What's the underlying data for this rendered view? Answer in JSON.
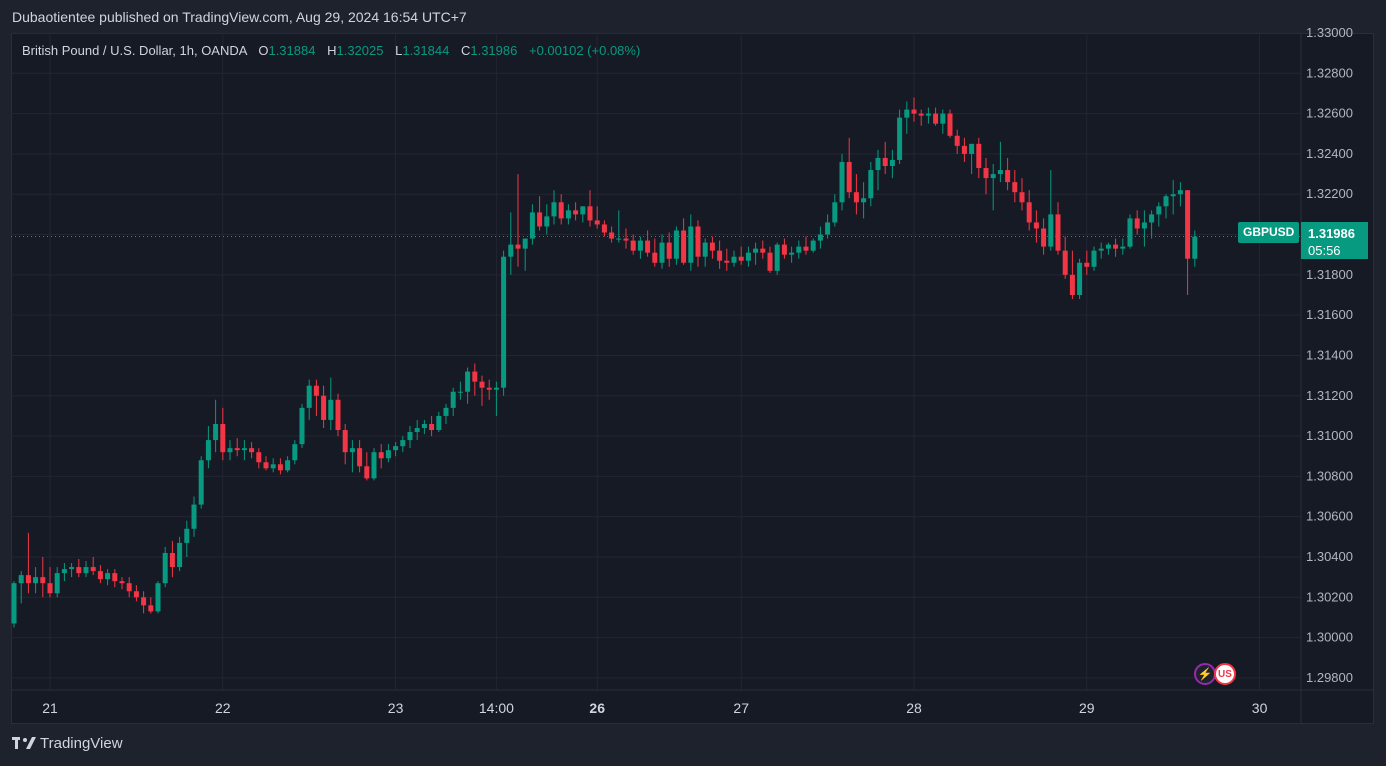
{
  "header": {
    "publish_line": "Dubaotientee published on TradingView.com, Aug 29, 2024 16:54 UTC+7"
  },
  "legend": {
    "instrument": "British Pound / U.S. Dollar, 1h, OANDA",
    "open_label": "O",
    "open_value": "1.31884",
    "high_label": "H",
    "high_value": "1.32025",
    "low_label": "L",
    "low_value": "1.31844",
    "close_label": "C",
    "close_value": "1.31986",
    "change": "+0.00102 (+0.08%)"
  },
  "last_price": {
    "symbol": "GBPUSD",
    "price": "1.31986",
    "countdown": "05:56"
  },
  "branding": {
    "name": "TradingView"
  },
  "icons": {
    "events": [
      "lightning-icon",
      "us-flag-icon"
    ],
    "logo": "tradingview-logo-icon"
  },
  "colors": {
    "up": "#089981",
    "down": "#f23645",
    "background": "#161a25",
    "grid": "#232632"
  },
  "chart_data": {
    "type": "candlestick",
    "symbol": "GBPUSD",
    "timeframe": "1h",
    "y_ticks": [
      "1.33000",
      "1.32800",
      "1.32600",
      "1.32400",
      "1.32200",
      "1.32000",
      "1.31800",
      "1.31600",
      "1.31400",
      "1.31200",
      "1.31000",
      "1.30800",
      "1.30600",
      "1.30400",
      "1.30200",
      "1.30000",
      "1.29800"
    ],
    "y_range": [
      1.2974,
      1.33
    ],
    "x_ticks": [
      {
        "label": "21",
        "i": 5,
        "bold": false
      },
      {
        "label": "22",
        "i": 29,
        "bold": false
      },
      {
        "label": "23",
        "i": 53,
        "bold": false
      },
      {
        "label": "14:00",
        "i": 67,
        "bold": false
      },
      {
        "label": "26",
        "i": 81,
        "bold": true
      },
      {
        "label": "27",
        "i": 101,
        "bold": false
      },
      {
        "label": "28",
        "i": 125,
        "bold": false
      },
      {
        "label": "29",
        "i": 149,
        "bold": false
      },
      {
        "label": "30",
        "i": 173,
        "bold": false
      }
    ],
    "candles": [
      [
        1.3007,
        1.3028,
        1.3005,
        1.3027
      ],
      [
        1.3027,
        1.3033,
        1.3017,
        1.3031
      ],
      [
        1.3031,
        1.3052,
        1.3022,
        1.3027
      ],
      [
        1.3027,
        1.3035,
        1.3022,
        1.303
      ],
      [
        1.303,
        1.304,
        1.302,
        1.3027
      ],
      [
        1.3027,
        1.3035,
        1.302,
        1.3022
      ],
      [
        1.3022,
        1.3035,
        1.302,
        1.3032
      ],
      [
        1.3032,
        1.3037,
        1.3028,
        1.3034
      ],
      [
        1.3034,
        1.3037,
        1.303,
        1.3035
      ],
      [
        1.3035,
        1.3039,
        1.303,
        1.3032
      ],
      [
        1.3032,
        1.3038,
        1.303,
        1.3035
      ],
      [
        1.3035,
        1.304,
        1.3031,
        1.3033
      ],
      [
        1.3033,
        1.3036,
        1.3027,
        1.3029
      ],
      [
        1.3029,
        1.3034,
        1.3026,
        1.3032
      ],
      [
        1.3032,
        1.3034,
        1.3025,
        1.3028
      ],
      [
        1.3028,
        1.303,
        1.3024,
        1.3027
      ],
      [
        1.3027,
        1.303,
        1.302,
        1.3023
      ],
      [
        1.3023,
        1.3026,
        1.3018,
        1.302
      ],
      [
        1.302,
        1.3023,
        1.3012,
        1.3016
      ],
      [
        1.3016,
        1.302,
        1.3012,
        1.3013
      ],
      [
        1.3013,
        1.3028,
        1.3012,
        1.3027
      ],
      [
        1.3027,
        1.3045,
        1.3025,
        1.3042
      ],
      [
        1.3042,
        1.3048,
        1.303,
        1.3035
      ],
      [
        1.3035,
        1.305,
        1.3033,
        1.3047
      ],
      [
        1.3047,
        1.3058,
        1.304,
        1.3054
      ],
      [
        1.3054,
        1.307,
        1.305,
        1.3066
      ],
      [
        1.3066,
        1.309,
        1.3064,
        1.3088
      ],
      [
        1.3088,
        1.3105,
        1.3084,
        1.3098
      ],
      [
        1.3098,
        1.3118,
        1.3092,
        1.3106
      ],
      [
        1.3106,
        1.3114,
        1.3088,
        1.3092
      ],
      [
        1.3092,
        1.3098,
        1.3088,
        1.3094
      ],
      [
        1.3094,
        1.3099,
        1.309,
        1.3093
      ],
      [
        1.3093,
        1.3098,
        1.3088,
        1.3094
      ],
      [
        1.3094,
        1.3097,
        1.3089,
        1.3092
      ],
      [
        1.3092,
        1.3094,
        1.3084,
        1.3087
      ],
      [
        1.3087,
        1.309,
        1.3083,
        1.3084
      ],
      [
        1.3084,
        1.3089,
        1.3082,
        1.3086
      ],
      [
        1.3086,
        1.3089,
        1.3081,
        1.3083
      ],
      [
        1.3083,
        1.309,
        1.3082,
        1.3088
      ],
      [
        1.3088,
        1.3098,
        1.3086,
        1.3096
      ],
      [
        1.3096,
        1.3116,
        1.3094,
        1.3114
      ],
      [
        1.3114,
        1.3128,
        1.3108,
        1.3125
      ],
      [
        1.3125,
        1.3128,
        1.311,
        1.312
      ],
      [
        1.312,
        1.3125,
        1.3104,
        1.3108
      ],
      [
        1.3108,
        1.3129,
        1.3103,
        1.3118
      ],
      [
        1.3118,
        1.3121,
        1.31,
        1.3103
      ],
      [
        1.3103,
        1.3106,
        1.3086,
        1.3092
      ],
      [
        1.3092,
        1.3098,
        1.3082,
        1.3094
      ],
      [
        1.3094,
        1.3098,
        1.3082,
        1.3085
      ],
      [
        1.3085,
        1.3092,
        1.3078,
        1.3079
      ],
      [
        1.3079,
        1.3094,
        1.3078,
        1.3092
      ],
      [
        1.3092,
        1.3096,
        1.3084,
        1.3089
      ],
      [
        1.3089,
        1.3096,
        1.3087,
        1.3093
      ],
      [
        1.3093,
        1.3097,
        1.309,
        1.3095
      ],
      [
        1.3095,
        1.31,
        1.3092,
        1.3098
      ],
      [
        1.3098,
        1.3105,
        1.3094,
        1.3102
      ],
      [
        1.3102,
        1.3108,
        1.3098,
        1.3104
      ],
      [
        1.3104,
        1.3108,
        1.3101,
        1.3106
      ],
      [
        1.3106,
        1.311,
        1.31,
        1.3103
      ],
      [
        1.3103,
        1.3112,
        1.3102,
        1.311
      ],
      [
        1.311,
        1.3116,
        1.3106,
        1.3114
      ],
      [
        1.3114,
        1.3124,
        1.311,
        1.3122
      ],
      [
        1.3122,
        1.3127,
        1.3118,
        1.3122
      ],
      [
        1.3122,
        1.3134,
        1.3116,
        1.3132
      ],
      [
        1.3132,
        1.3136,
        1.312,
        1.3127
      ],
      [
        1.3127,
        1.313,
        1.3115,
        1.3124
      ],
      [
        1.3124,
        1.3128,
        1.3118,
        1.3123
      ],
      [
        1.3123,
        1.3127,
        1.311,
        1.3124
      ],
      [
        1.3124,
        1.3192,
        1.312,
        1.3189
      ],
      [
        1.3189,
        1.3211,
        1.318,
        1.3195
      ],
      [
        1.3195,
        1.323,
        1.3184,
        1.3193
      ],
      [
        1.3193,
        1.3198,
        1.3182,
        1.3198
      ],
      [
        1.3198,
        1.3215,
        1.3195,
        1.3211
      ],
      [
        1.3211,
        1.3219,
        1.3202,
        1.3204
      ],
      [
        1.3204,
        1.3215,
        1.32,
        1.3209
      ],
      [
        1.3209,
        1.3222,
        1.3205,
        1.3216
      ],
      [
        1.3216,
        1.322,
        1.3205,
        1.3208
      ],
      [
        1.3208,
        1.3215,
        1.3205,
        1.3212
      ],
      [
        1.3212,
        1.3216,
        1.3207,
        1.321
      ],
      [
        1.321,
        1.3214,
        1.3206,
        1.3214
      ],
      [
        1.3214,
        1.3222,
        1.3204,
        1.3207
      ],
      [
        1.3207,
        1.3214,
        1.3203,
        1.3205
      ],
      [
        1.3205,
        1.3207,
        1.3199,
        1.3201
      ],
      [
        1.3201,
        1.3204,
        1.3196,
        1.3198
      ],
      [
        1.3198,
        1.3212,
        1.3196,
        1.3198
      ],
      [
        1.3198,
        1.3203,
        1.3193,
        1.3197
      ],
      [
        1.3197,
        1.32,
        1.319,
        1.3192
      ],
      [
        1.3192,
        1.3199,
        1.3188,
        1.3197
      ],
      [
        1.3197,
        1.3202,
        1.3189,
        1.3191
      ],
      [
        1.3191,
        1.3198,
        1.3184,
        1.3186
      ],
      [
        1.3186,
        1.32,
        1.3183,
        1.3196
      ],
      [
        1.3196,
        1.3201,
        1.3184,
        1.3188
      ],
      [
        1.3188,
        1.3204,
        1.3185,
        1.3202
      ],
      [
        1.3202,
        1.3208,
        1.3185,
        1.3186
      ],
      [
        1.3186,
        1.321,
        1.3182,
        1.3204
      ],
      [
        1.3204,
        1.3207,
        1.3184,
        1.3189
      ],
      [
        1.3189,
        1.3198,
        1.3184,
        1.3196
      ],
      [
        1.3196,
        1.3199,
        1.3188,
        1.3192
      ],
      [
        1.3192,
        1.3197,
        1.3183,
        1.3187
      ],
      [
        1.3187,
        1.3193,
        1.3182,
        1.3186
      ],
      [
        1.3186,
        1.3192,
        1.3184,
        1.3189
      ],
      [
        1.3189,
        1.3194,
        1.3185,
        1.3187
      ],
      [
        1.3187,
        1.3194,
        1.3184,
        1.3191
      ],
      [
        1.3191,
        1.3196,
        1.3185,
        1.3193
      ],
      [
        1.3193,
        1.3197,
        1.3188,
        1.3191
      ],
      [
        1.3191,
        1.3194,
        1.3181,
        1.3182
      ],
      [
        1.3182,
        1.3196,
        1.318,
        1.3195
      ],
      [
        1.3195,
        1.3198,
        1.3188,
        1.319
      ],
      [
        1.319,
        1.3194,
        1.3186,
        1.3191
      ],
      [
        1.3191,
        1.3197,
        1.3188,
        1.3194
      ],
      [
        1.3194,
        1.3199,
        1.319,
        1.3192
      ],
      [
        1.3192,
        1.3198,
        1.3191,
        1.3197
      ],
      [
        1.3197,
        1.3204,
        1.3193,
        1.32
      ],
      [
        1.32,
        1.321,
        1.3198,
        1.3206
      ],
      [
        1.3206,
        1.322,
        1.3204,
        1.3216
      ],
      [
        1.3216,
        1.324,
        1.3212,
        1.3236
      ],
      [
        1.3236,
        1.3248,
        1.3218,
        1.3221
      ],
      [
        1.3221,
        1.323,
        1.321,
        1.3216
      ],
      [
        1.3216,
        1.3226,
        1.3208,
        1.3218
      ],
      [
        1.3218,
        1.3236,
        1.3214,
        1.3232
      ],
      [
        1.3232,
        1.3242,
        1.3222,
        1.3238
      ],
      [
        1.3238,
        1.3246,
        1.323,
        1.3234
      ],
      [
        1.3234,
        1.3242,
        1.3228,
        1.3237
      ],
      [
        1.3237,
        1.3262,
        1.3235,
        1.3258
      ],
      [
        1.3258,
        1.3266,
        1.325,
        1.3262
      ],
      [
        1.3262,
        1.3268,
        1.3256,
        1.326
      ],
      [
        1.326,
        1.3262,
        1.3254,
        1.3259
      ],
      [
        1.3259,
        1.3263,
        1.3255,
        1.326
      ],
      [
        1.326,
        1.3263,
        1.3254,
        1.3255
      ],
      [
        1.3255,
        1.3262,
        1.325,
        1.326
      ],
      [
        1.326,
        1.3262,
        1.3248,
        1.3249
      ],
      [
        1.3249,
        1.3252,
        1.324,
        1.3244
      ],
      [
        1.3244,
        1.3248,
        1.3236,
        1.324
      ],
      [
        1.324,
        1.3245,
        1.323,
        1.3245
      ],
      [
        1.3245,
        1.3248,
        1.3228,
        1.3233
      ],
      [
        1.3233,
        1.3238,
        1.322,
        1.3228
      ],
      [
        1.3228,
        1.3235,
        1.3212,
        1.323
      ],
      [
        1.323,
        1.3246,
        1.3226,
        1.3232
      ],
      [
        1.3232,
        1.3238,
        1.3222,
        1.3226
      ],
      [
        1.3226,
        1.3232,
        1.3216,
        1.3221
      ],
      [
        1.3221,
        1.3228,
        1.3212,
        1.3216
      ],
      [
        1.3216,
        1.3222,
        1.3202,
        1.3206
      ],
      [
        1.3206,
        1.3212,
        1.3196,
        1.3203
      ],
      [
        1.3203,
        1.3208,
        1.319,
        1.3194
      ],
      [
        1.3194,
        1.3232,
        1.3192,
        1.321
      ],
      [
        1.321,
        1.3216,
        1.319,
        1.3192
      ],
      [
        1.3192,
        1.3199,
        1.3178,
        1.318
      ],
      [
        1.318,
        1.3192,
        1.3168,
        1.317
      ],
      [
        1.317,
        1.3188,
        1.3168,
        1.3186
      ],
      [
        1.3186,
        1.3192,
        1.318,
        1.3184
      ],
      [
        1.3184,
        1.3194,
        1.3182,
        1.3192
      ],
      [
        1.3192,
        1.3196,
        1.3188,
        1.3193
      ],
      [
        1.3193,
        1.3196,
        1.319,
        1.3195
      ],
      [
        1.3195,
        1.3198,
        1.3189,
        1.3193
      ],
      [
        1.3193,
        1.3198,
        1.319,
        1.3194
      ],
      [
        1.3194,
        1.321,
        1.3193,
        1.3208
      ],
      [
        1.3208,
        1.3212,
        1.32,
        1.3203
      ],
      [
        1.3203,
        1.3212,
        1.3194,
        1.3206
      ],
      [
        1.3206,
        1.3212,
        1.3198,
        1.321
      ],
      [
        1.321,
        1.3216,
        1.3204,
        1.3214
      ],
      [
        1.3214,
        1.322,
        1.3208,
        1.3219
      ],
      [
        1.3219,
        1.3227,
        1.321,
        1.322
      ],
      [
        1.322,
        1.3226,
        1.3214,
        1.3222
      ],
      [
        1.3222,
        1.3222,
        1.317,
        1.3188
      ],
      [
        1.3188,
        1.3202,
        1.3184,
        1.3199
      ]
    ]
  }
}
